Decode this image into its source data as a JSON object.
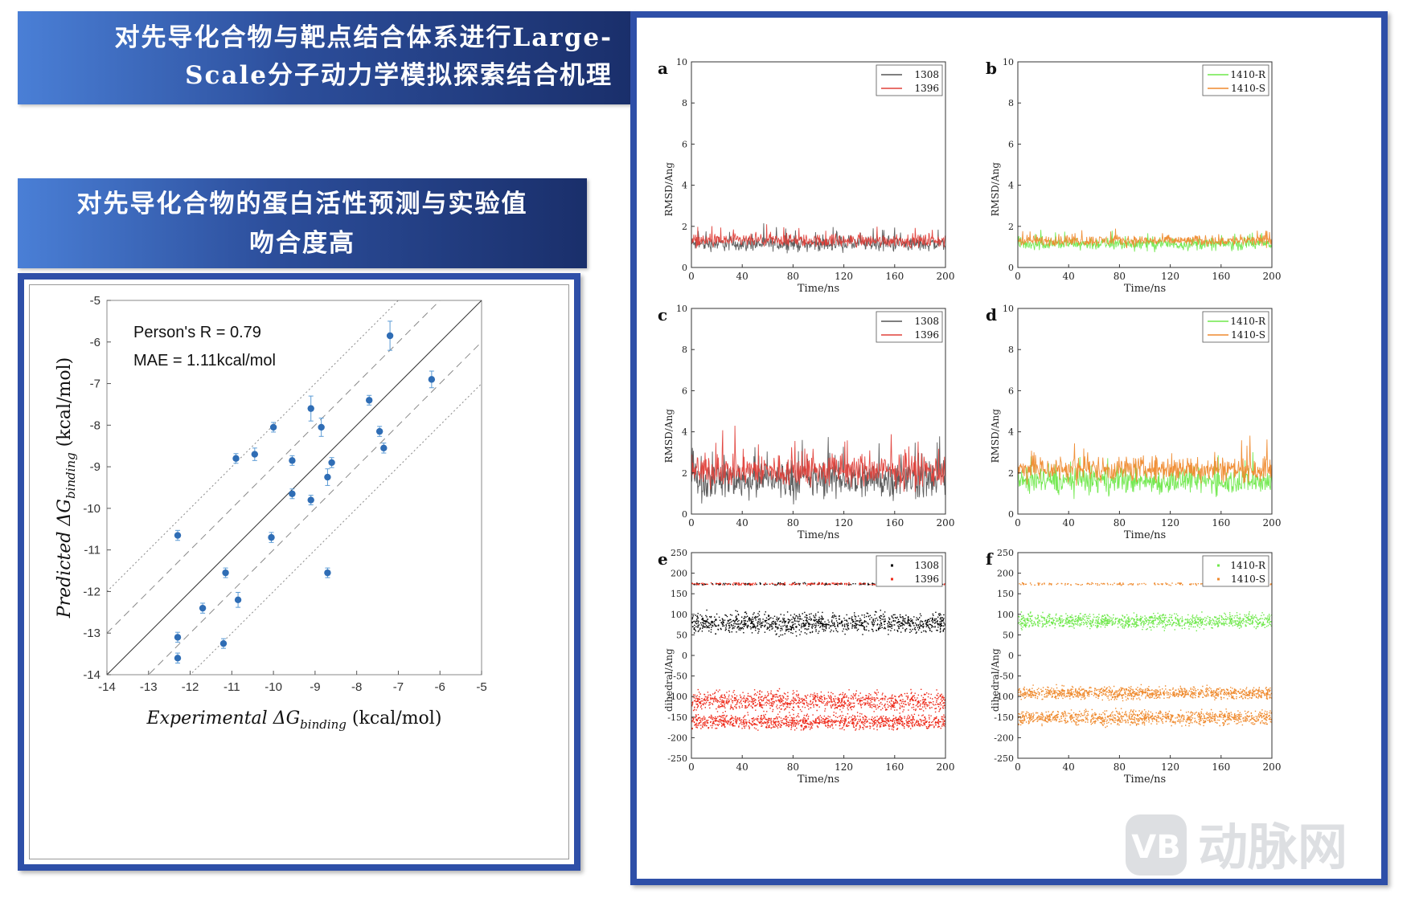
{
  "banner_top": {
    "line1": "对先导化合物与靶点结合体系进行Large-",
    "line2": "Scale分子动力学模拟探索结合机理"
  },
  "banner_mid": {
    "line1": "对先导化合物的蛋白活性预测与实验值",
    "line2": "吻合度高"
  },
  "watermark": {
    "text": "动脉网",
    "logo_icon": "vb-logo-icon"
  },
  "colors": {
    "banner_start": "#4a7fd6",
    "banner_end": "#1a2f6b",
    "border": "#2e4fa8",
    "scatter": "#2f6db5",
    "s1308": "#555555",
    "s1396": "#e0403a",
    "s1410R": "#6ee84a",
    "s1410S": "#ef8a2e",
    "d1308": "#000000",
    "d1396": "#ee2a1a"
  },
  "chart_data": [
    {
      "id": "scatter",
      "type": "scatter",
      "xlabel": "Experimental ΔG",
      "xlabel_sub": "binding",
      "xlabel_unit": "(kcal/mol)",
      "ylabel": "Predicted ΔG",
      "ylabel_sub": "binding",
      "ylabel_unit": "(kcal/mol)",
      "xlim": [
        -14,
        -5
      ],
      "ylim": [
        -14,
        -5
      ],
      "xticks": [
        -14,
        -13,
        -12,
        -11,
        -10,
        -9,
        -8,
        -7,
        -6,
        -5
      ],
      "yticks": [
        -14,
        -13,
        -12,
        -11,
        -10,
        -9,
        -8,
        -7,
        -6,
        -5
      ],
      "annotations": [
        "Person's R = 0.79",
        "MAE = 1.11kcal/mol"
      ],
      "reference_lines": [
        {
          "offset": 0,
          "style": "solid"
        },
        {
          "offset": 1,
          "style": "dashed"
        },
        {
          "offset": -1,
          "style": "dashed"
        },
        {
          "offset": 2,
          "style": "dotted"
        },
        {
          "offset": -2,
          "style": "dotted"
        }
      ],
      "points": [
        {
          "x": -12.3,
          "y": -10.65,
          "err": 0.12
        },
        {
          "x": -12.3,
          "y": -13.1,
          "err": 0.12
        },
        {
          "x": -12.3,
          "y": -13.6,
          "err": 0.12
        },
        {
          "x": -11.7,
          "y": -12.4,
          "err": 0.12
        },
        {
          "x": -11.2,
          "y": -13.25,
          "err": 0.1
        },
        {
          "x": -11.15,
          "y": -11.55,
          "err": 0.08
        },
        {
          "x": -10.9,
          "y": -8.8,
          "err": 0.1
        },
        {
          "x": -10.85,
          "y": -12.2,
          "err": 0.18
        },
        {
          "x": -10.45,
          "y": -8.7,
          "err": 0.15
        },
        {
          "x": -10.05,
          "y": -10.7,
          "err": 0.12
        },
        {
          "x": -10.0,
          "y": -8.05,
          "err": 0.08
        },
        {
          "x": -9.55,
          "y": -8.85,
          "err": 0.1
        },
        {
          "x": -9.55,
          "y": -9.65,
          "err": 0.1
        },
        {
          "x": -9.1,
          "y": -7.6,
          "err": 0.3
        },
        {
          "x": -9.1,
          "y": -9.8,
          "err": 0.1
        },
        {
          "x": -8.85,
          "y": -8.05,
          "err": 0.22
        },
        {
          "x": -8.7,
          "y": -9.25,
          "err": 0.2
        },
        {
          "x": -8.7,
          "y": -11.55,
          "err": 0.1
        },
        {
          "x": -8.6,
          "y": -8.9,
          "err": 0.12
        },
        {
          "x": -7.7,
          "y": -7.4,
          "err": 0.08
        },
        {
          "x": -7.45,
          "y": -8.15,
          "err": 0.12
        },
        {
          "x": -7.35,
          "y": -8.55,
          "err": 0.12
        },
        {
          "x": -7.2,
          "y": -5.85,
          "err": 0.35
        },
        {
          "x": -6.2,
          "y": -6.9,
          "err": 0.2
        }
      ]
    },
    {
      "id": "a",
      "letter": "a",
      "type": "line",
      "xlabel": "Time/ns",
      "ylabel": "RMSD/Ang",
      "xlim": [
        0,
        200
      ],
      "ylim": [
        0,
        10
      ],
      "xticks": [
        0,
        40,
        80,
        120,
        160,
        "200"
      ],
      "yticks": [
        0,
        2,
        4,
        6,
        8,
        10
      ],
      "legend_pos": "top-right",
      "series": [
        {
          "name": "1308",
          "mean": 1.15,
          "amp": 0.4,
          "max": 2.3
        },
        {
          "name": "1396",
          "mean": 1.3,
          "amp": 0.35,
          "max": 2.1
        }
      ]
    },
    {
      "id": "b",
      "letter": "b",
      "type": "line",
      "xlabel": "Time/ns",
      "ylabel": "RMSD/Ang",
      "xlim": [
        0,
        200
      ],
      "ylim": [
        0,
        10
      ],
      "xticks": [
        0,
        40,
        80,
        120,
        160,
        200
      ],
      "yticks": [
        0,
        2,
        4,
        6,
        8,
        10
      ],
      "legend_pos": "top-right",
      "series": [
        {
          "name": "1410-R",
          "mean": 1.15,
          "amp": 0.35,
          "max": 2.1
        },
        {
          "name": "1410-S",
          "mean": 1.3,
          "amp": 0.3,
          "max": 2.0
        }
      ]
    },
    {
      "id": "c",
      "letter": "c",
      "type": "line",
      "xlabel": "Time/ns",
      "ylabel": "RMSD/Ang",
      "xlim": [
        0,
        200
      ],
      "ylim": [
        0,
        10
      ],
      "xticks": [
        0,
        40,
        80,
        120,
        160,
        200
      ],
      "yticks": [
        0,
        2,
        4,
        6,
        8,
        10
      ],
      "legend_pos": "top-right",
      "series": [
        {
          "name": "1308",
          "mean": 1.7,
          "amp": 1.1,
          "max": 4.5
        },
        {
          "name": "1396",
          "mean": 2.1,
          "amp": 0.9,
          "max": 4.8
        }
      ]
    },
    {
      "id": "d",
      "letter": "d",
      "type": "line",
      "xlabel": "Time/ns",
      "ylabel": "RMSD/Ang",
      "xlim": [
        0,
        200
      ],
      "ylim": [
        0,
        10
      ],
      "xticks": [
        0,
        40,
        80,
        120,
        160,
        200
      ],
      "yticks": [
        0,
        2,
        4,
        6,
        8,
        10
      ],
      "legend_pos": "top-right",
      "series": [
        {
          "name": "1410-R",
          "mean": 1.6,
          "amp": 0.7,
          "max": 3.3
        },
        {
          "name": "1410-S",
          "mean": 2.2,
          "amp": 0.7,
          "max": 4.3
        }
      ]
    },
    {
      "id": "e",
      "letter": "e",
      "type": "scatter",
      "xlabel": "Time/ns",
      "ylabel": "dihedral/Ang",
      "xlim": [
        0,
        200
      ],
      "ylim": [
        -250,
        250
      ],
      "xticks": [
        0,
        40,
        80,
        120,
        160,
        "200"
      ],
      "yticks": [
        -250,
        -200,
        -150,
        -100,
        -50,
        0,
        50,
        100,
        150,
        200,
        250
      ],
      "legend_pos": "top-right",
      "series": [
        {
          "name": "1308",
          "bands": [
            [
              80,
              25
            ],
            [
              175,
              3
            ]
          ]
        },
        {
          "name": "1396",
          "bands": [
            [
              -160,
              18
            ],
            [
              -110,
              25
            ],
            [
              175,
              3
            ]
          ]
        }
      ]
    },
    {
      "id": "f",
      "letter": "f",
      "type": "scatter",
      "xlabel": "Time/ns",
      "ylabel": "dihedral/Ang",
      "xlim": [
        0,
        200
      ],
      "ylim": [
        -250,
        250
      ],
      "xticks": [
        0,
        40,
        80,
        120,
        160,
        200
      ],
      "yticks": [
        -250,
        -200,
        -150,
        -100,
        -50,
        0,
        50,
        100,
        150,
        200,
        250
      ],
      "legend_pos": "top-right",
      "series": [
        {
          "name": "1410-R",
          "bands": [
            [
              85,
              18
            ]
          ]
        },
        {
          "name": "1410-S",
          "bands": [
            [
              -90,
              15
            ],
            [
              -150,
              18
            ],
            [
              175,
              3
            ]
          ]
        }
      ]
    }
  ]
}
